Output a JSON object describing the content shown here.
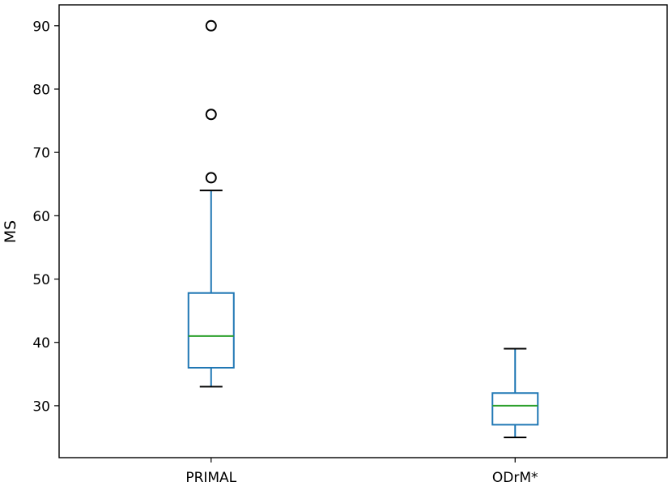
{
  "chart_data": {
    "type": "box",
    "title": "",
    "xlabel": "",
    "ylabel": "MS",
    "ylim": [
      21.8,
      93.3
    ],
    "yticks": [
      30,
      40,
      50,
      60,
      70,
      80,
      90
    ],
    "grid": false,
    "categories": [
      "PRIMAL",
      "ODrM*"
    ],
    "boxes": [
      {
        "label": "PRIMAL",
        "whisker_low": 33,
        "q1": 36,
        "median": 41,
        "q3": 47.8,
        "whisker_high": 64,
        "outliers": [
          66,
          76,
          90
        ]
      },
      {
        "label": "ODrM*",
        "whisker_low": 25,
        "q1": 27,
        "median": 30,
        "q3": 32,
        "whisker_high": 39,
        "outliers": []
      }
    ],
    "colors": {
      "box": "#1f77b4",
      "median": "#2ca02c",
      "whisker_cap": "#000000",
      "outlier": "#000000"
    }
  }
}
